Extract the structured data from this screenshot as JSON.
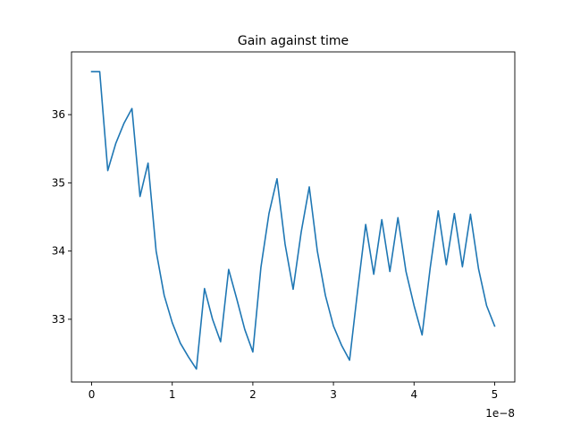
{
  "chart_data": {
    "type": "line",
    "title": "Gain against time",
    "xlabel": "",
    "ylabel": "",
    "x_offset_label": "1e−8",
    "xlim": [
      -0.25,
      5.25
    ],
    "ylim": [
      32.08,
      36.92
    ],
    "xticks": [
      0,
      1,
      2,
      3,
      4,
      5
    ],
    "xtick_labels": [
      "0",
      "1",
      "2",
      "3",
      "4",
      "5"
    ],
    "yticks": [
      33,
      34,
      35,
      36
    ],
    "ytick_labels": [
      "33",
      "34",
      "35",
      "36"
    ],
    "grid": false,
    "legend": "none",
    "line_color": "#1f77b4",
    "series": [
      {
        "x": [
          0.0,
          0.1,
          0.2,
          0.3,
          0.4,
          0.5,
          0.6,
          0.7,
          0.8,
          0.9,
          1.0,
          1.1,
          1.2,
          1.3,
          1.4,
          1.5,
          1.6,
          1.7,
          1.8,
          1.9,
          2.0,
          2.1,
          2.2,
          2.3,
          2.4,
          2.5,
          2.6,
          2.7,
          2.8,
          2.9,
          3.0,
          3.1,
          3.2,
          3.3,
          3.4,
          3.5,
          3.6,
          3.7,
          3.8,
          3.9,
          4.0,
          4.1,
          4.2,
          4.3,
          4.4,
          4.5,
          4.6,
          4.7,
          4.8,
          4.9,
          5.0
        ],
        "y": [
          36.63,
          36.63,
          35.18,
          35.58,
          35.87,
          36.09,
          34.8,
          35.29,
          34.0,
          33.35,
          32.95,
          32.65,
          32.45,
          32.27,
          33.45,
          33.0,
          32.67,
          33.73,
          33.3,
          32.85,
          32.52,
          33.76,
          34.55,
          35.06,
          34.1,
          33.44,
          34.28,
          34.94,
          34.0,
          33.35,
          32.9,
          32.62,
          32.4,
          33.42,
          34.39,
          33.66,
          34.46,
          33.7,
          34.49,
          33.7,
          33.2,
          32.77,
          33.75,
          34.59,
          33.8,
          34.55,
          33.77,
          34.54,
          33.74,
          33.2,
          32.9
        ]
      }
    ]
  }
}
